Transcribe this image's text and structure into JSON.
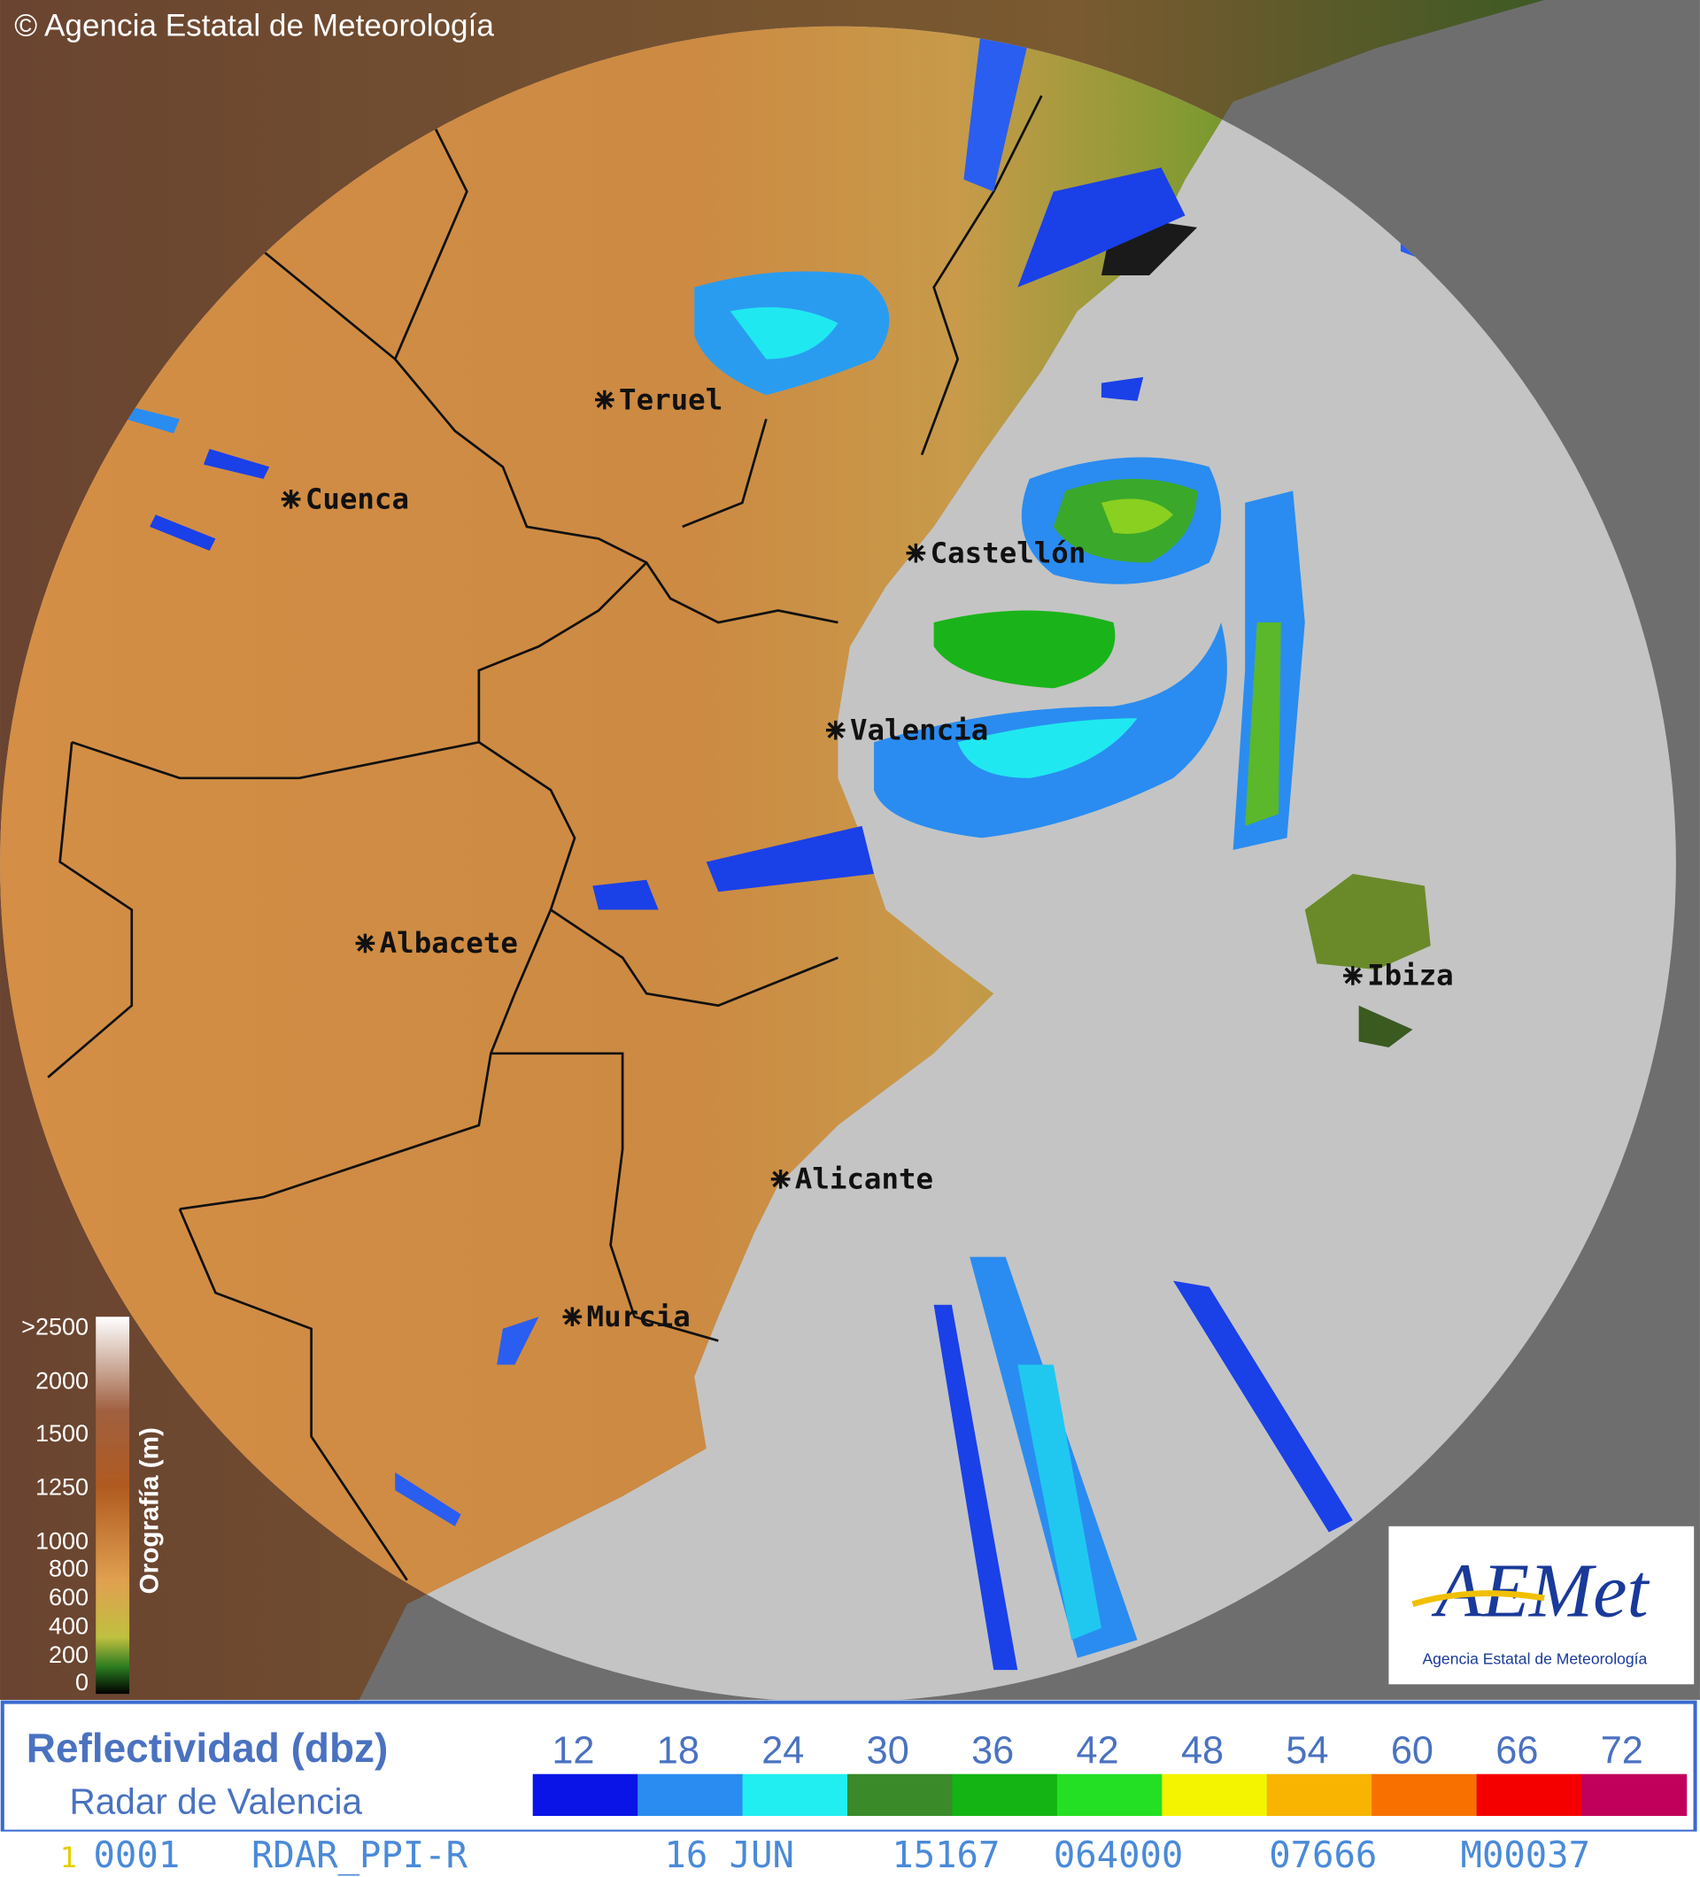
{
  "header": {
    "credit": "© Agencia Estatal de Meteorología"
  },
  "map": {
    "cities": [
      "Teruel",
      "Cuenca",
      "Castellón",
      "Valencia",
      "Albacete",
      "Ibiza",
      "Alicante",
      "Murcia"
    ]
  },
  "orography_legend": {
    "title": "Orografía (m)",
    "ticks": [
      ">2500",
      2000,
      1500,
      1250,
      1000,
      800,
      600,
      400,
      200,
      0
    ]
  },
  "reflectivity_legend": {
    "title": "Reflectividad (dbz)",
    "subtitle": "Radar de Valencia",
    "levels": [
      {
        "value": 12,
        "color": "#0a14e6"
      },
      {
        "value": 18,
        "color": "#2a8cf0"
      },
      {
        "value": 24,
        "color": "#20eef0"
      },
      {
        "value": 30,
        "color": "#3a8a2a"
      },
      {
        "value": 36,
        "color": "#14b414"
      },
      {
        "value": 42,
        "color": "#24e024"
      },
      {
        "value": 48,
        "color": "#f4f400"
      },
      {
        "value": 54,
        "color": "#f8b400"
      },
      {
        "value": 60,
        "color": "#f87000"
      },
      {
        "value": 66,
        "color": "#f40000"
      },
      {
        "value": 72,
        "color": "#c0005a"
      }
    ]
  },
  "status_line": {
    "page": "1",
    "fields": [
      "0001",
      "RDAR_PPI-R",
      "16 JUN",
      "15167",
      "064000",
      "07666",
      "M00037"
    ]
  },
  "logo": {
    "name": "AEMet",
    "tagline": "Agencia Estatal de Meteorología"
  }
}
